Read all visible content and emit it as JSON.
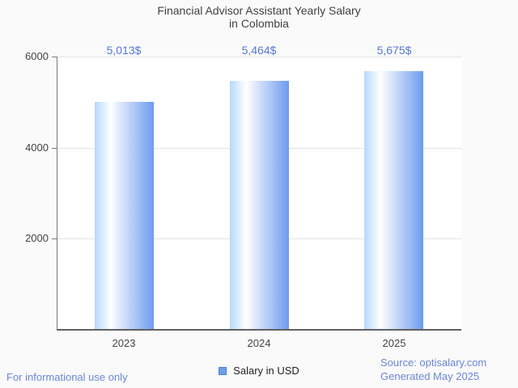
{
  "title": {
    "line1": "Financial Advisor Assistant Yearly Salary",
    "line2": "in Colombia"
  },
  "chart_data": {
    "type": "bar",
    "title": "Financial Advisor Assistant Yearly Salary in Colombia",
    "categories": [
      "2023",
      "2024",
      "2025"
    ],
    "series": [
      {
        "name": "Salary in USD",
        "values": [
          5013,
          5464,
          5675
        ],
        "labels": [
          "5,013$",
          "5,464$",
          "5,675$"
        ]
      }
    ],
    "xlabel": "",
    "ylabel": "",
    "ylim": [
      0,
      6000
    ],
    "yticks": [
      2000,
      4000,
      6000
    ],
    "grid": true,
    "legend_position": "bottom"
  },
  "legend": {
    "label": "Salary in USD"
  },
  "footer": {
    "disclaimer": "For informational use only",
    "source": "Source: optisalary.com",
    "generated": "Generated May 2025"
  },
  "colors": {
    "background": "#fafafa",
    "chart_background": "#ffffff",
    "bar_gradient_left": "#b3d9fb",
    "bar_gradient_mid": "#ffffff",
    "bar_gradient_right": "#6e9bef",
    "annotation_text": "#5478d6",
    "title_text": "#414141",
    "axis_text": "#434343",
    "gridline": "#e4e4e4",
    "axis_line": "#7a7a7a",
    "baseline": "#616161",
    "legend_swatch_fill": "#6d9eea",
    "legend_swatch_border": "#4d7ed2",
    "footer_text": "#6a86d6"
  }
}
